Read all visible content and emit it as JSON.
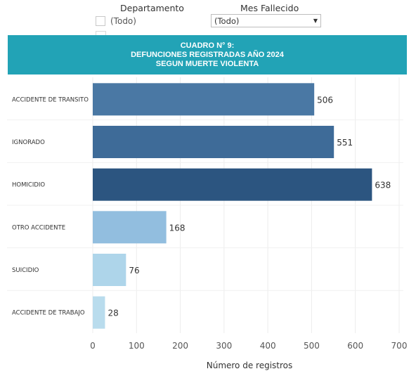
{
  "filters": {
    "departamento_label": "Departamento",
    "departamento_option": "(Todo)",
    "mes_label": "Mes Fallecido",
    "mes_value": "(Todo)"
  },
  "banner": {
    "line1": "CUADRO N° 9:",
    "line2": "DEFUNCIONES REGISTRADAS AÑO 2024",
    "line3": "SEGUN MUERTE VIOLENTA"
  },
  "chart_data": {
    "type": "bar",
    "orientation": "horizontal",
    "categories": [
      "ACCIDENTE DE TRANSITO",
      "IGNORADO",
      "HOMICIDIO",
      "OTRO ACCIDENTE",
      "SUICIDIO",
      "ACCIDENTE DE TRABAJO"
    ],
    "values": [
      506,
      551,
      638,
      168,
      76,
      28
    ],
    "value_labels": [
      "506",
      "551",
      "638",
      "168",
      "76",
      "28"
    ],
    "colors": [
      "#4a78a4",
      "#3e6b98",
      "#2c5580",
      "#92bedf",
      "#aed5ea",
      "#b9dced"
    ],
    "xlabel": "Número de registros",
    "xlim": [
      0,
      700
    ],
    "xticks": [
      0,
      100,
      200,
      300,
      400,
      500,
      600,
      700
    ],
    "xtick_labels": [
      "0",
      "100",
      "200",
      "300",
      "400",
      "500",
      "600",
      "700"
    ],
    "grid": "vertical"
  }
}
